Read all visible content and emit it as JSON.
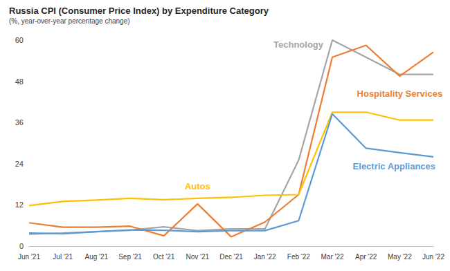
{
  "chart_data": {
    "type": "line",
    "title": "Russia CPI (Consumer Price Index) by Expenditure Category",
    "subtitle": "(%, year-over-year percentage change)",
    "categories": [
      "Jun '21",
      "Jul '21",
      "Aug '21",
      "Sep '21",
      "Oct '21",
      "Nov '21",
      "Dec '21",
      "Jan '22",
      "Feb '22",
      "Mar '22",
      "Apr '22",
      "May '22",
      "Jun '22"
    ],
    "series": [
      {
        "name": "Technology",
        "color": "#a5a5a5",
        "values": [
          3.5,
          3.8,
          4.2,
          4.6,
          5.6,
          4.5,
          5.0,
          5.0,
          25,
          60,
          55,
          50,
          50
        ]
      },
      {
        "name": "Hospitality Services",
        "color": "#ed7d31",
        "values": [
          6.8,
          5.5,
          5.5,
          5.8,
          3.0,
          12.3,
          2.7,
          7.0,
          15,
          55,
          58.5,
          49.5,
          56.5
        ]
      },
      {
        "name": "Autos",
        "color": "#ffc000",
        "values": [
          11.8,
          13.0,
          13.4,
          13.9,
          13.5,
          13.9,
          14.2,
          14.8,
          15.0,
          39,
          39,
          36.7,
          36.7
        ]
      },
      {
        "name": "Electric Appliances",
        "color": "#5b9bd5",
        "values": [
          3.8,
          3.6,
          4.2,
          4.7,
          4.6,
          4.2,
          4.5,
          4.5,
          7.4,
          38.5,
          28.5,
          27.2,
          26.0
        ]
      }
    ],
    "ylim": [
      0,
      60
    ],
    "yticks": [
      0,
      12,
      24,
      36,
      48,
      60
    ],
    "grid": false
  }
}
